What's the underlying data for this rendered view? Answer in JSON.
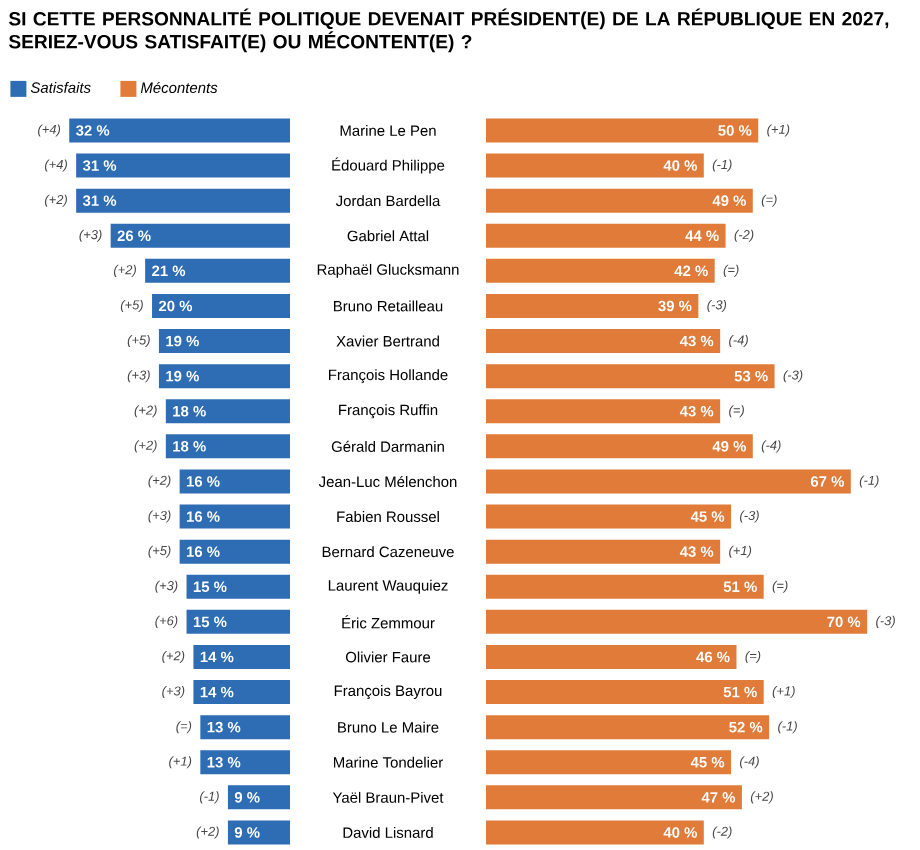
{
  "chart_data": [
    {
      "type": "bar",
      "orientation": "horizontal",
      "title": "SI CETTE PERSONNALITÉ POLITIQUE DEVENAIT PRÉSIDENT(E) DE LA RÉPUBLIQUE EN 2027, SERIEZ-VOUS SATISFAIT(E) OU MÉCONTENT(E) ?",
      "categories": [
        "Marine Le Pen",
        "Édouard Philippe",
        "Jordan Bardella",
        "Gabriel Attal",
        "Raphaël Glucksmann",
        "Bruno Retailleau",
        "Xavier Bertrand",
        "François Hollande",
        "François Ruffin",
        "Gérald Darmanin",
        "Jean-Luc Mélenchon",
        "Fabien Roussel",
        "Bernard Cazeneuve",
        "Laurent Wauquiez",
        "Éric Zemmour",
        "Olivier Faure",
        "François Bayrou",
        "Bruno Le Maire",
        "Marine Tondelier",
        "Yaël Braun-Pivet",
        "David Lisnard"
      ],
      "series": [
        {
          "name": "Satisfaits",
          "color": "#2e6db4",
          "values": [
            32,
            31,
            31,
            26,
            21,
            20,
            19,
            19,
            18,
            18,
            16,
            16,
            16,
            15,
            15,
            14,
            14,
            13,
            13,
            9,
            9
          ],
          "value_labels": [
            "32 %",
            "31 %",
            "31 %",
            "26 %",
            "21 %",
            "20 %",
            "19 %",
            "19 %",
            "18 %",
            "18 %",
            "16 %",
            "16 %",
            "16 %",
            "15 %",
            "15 %",
            "14 %",
            "14 %",
            "13 %",
            "13 %",
            "9 %",
            "9 %"
          ]
        }
      ],
      "tick_labels": "y",
      "legend": "top left",
      "annotations": [
        {
          "text": "(+4)",
          "x": 32,
          "y": "Marine Le Pen"
        },
        {
          "text": "(+4)",
          "x": 31,
          "y": "Édouard Philippe"
        },
        {
          "text": "(+2)",
          "x": 31,
          "y": "Jordan Bardella"
        },
        {
          "text": "(+3)",
          "x": 26,
          "y": "Gabriel Attal"
        },
        {
          "text": "(+2)",
          "x": 21,
          "y": "Raphaël Glucksmann"
        },
        {
          "text": "(+5)",
          "x": 20,
          "y": "Bruno Retailleau"
        },
        {
          "text": "(+5)",
          "x": 19,
          "y": "Xavier Bertrand"
        },
        {
          "text": "(+3)",
          "x": 19,
          "y": "François Hollande"
        },
        {
          "text": "(+2)",
          "x": 18,
          "y": "François Ruffin"
        },
        {
          "text": "(+2)",
          "x": 18,
          "y": "Gérald Darmanin"
        },
        {
          "text": "(+2)",
          "x": 16,
          "y": "Jean-Luc Mélenchon"
        },
        {
          "text": "(+3)",
          "x": 16,
          "y": "Fabien Roussel"
        },
        {
          "text": "(+5)",
          "x": 16,
          "y": "Bernard Cazeneuve"
        },
        {
          "text": "(+3)",
          "x": 15,
          "y": "Laurent Wauquiez"
        },
        {
          "text": "(+6)",
          "x": 15,
          "y": "Éric Zemmour"
        },
        {
          "text": "(+2)",
          "x": 14,
          "y": "Olivier Faure"
        },
        {
          "text": "(+3)",
          "x": 14,
          "y": "François Bayrou"
        },
        {
          "text": "(=)",
          "x": 13,
          "y": "Bruno Le Maire"
        },
        {
          "text": "(+1)",
          "x": 13,
          "y": "Marine Tondelier"
        },
        {
          "text": "(-1)",
          "x": 9,
          "y": "Yaël Braun-Pivet"
        },
        {
          "text": "(+2)",
          "x": 9,
          "y": "David Lisnard"
        }
      ]
    },
    {
      "type": "bar",
      "orientation": "horizontal",
      "categories": [
        "Marine Le Pen",
        "Édouard Philippe",
        "Jordan Bardella",
        "Gabriel Attal",
        "Raphaël Glucksmann",
        "Bruno Retailleau",
        "Xavier Bertrand",
        "François Hollande",
        "François Ruffin",
        "Gérald Darmanin",
        "Jean-Luc Mélenchon",
        "Fabien Roussel",
        "Bernard Cazeneuve",
        "Laurent Wauquiez",
        "Éric Zemmour",
        "Olivier Faure",
        "François Bayrou",
        "Bruno Le Maire",
        "Marine Tondelier",
        "Yaël Braun-Pivet",
        "David Lisnard"
      ],
      "series": [
        {
          "name": "Mécontents",
          "color": "#e07b39",
          "values": [
            50,
            40,
            49,
            44,
            42,
            39,
            43,
            53,
            43,
            49,
            67,
            45,
            43,
            51,
            70,
            46,
            51,
            52,
            45,
            47,
            40
          ],
          "value_labels": [
            "50 %",
            "40 %",
            "49 %",
            "44 %",
            "42 %",
            "39 %",
            "43 %",
            "53 %",
            "43 %",
            "49 %",
            "67 %",
            "45 %",
            "43 %",
            "51 %",
            "70 %",
            "46 %",
            "51 %",
            "52 %",
            "45 %",
            "47 %",
            "40 %"
          ]
        }
      ],
      "tick_labels": false,
      "legend": "top left",
      "annotations": [
        {
          "text": "(+1)",
          "x": 50,
          "y": "Marine Le Pen"
        },
        {
          "text": "(-1)",
          "x": 40,
          "y": "Édouard Philippe"
        },
        {
          "text": "(=)",
          "x": 49,
          "y": "Jordan Bardella"
        },
        {
          "text": "(-2)",
          "x": 44,
          "y": "Gabriel Attal"
        },
        {
          "text": "(=)",
          "x": 42,
          "y": "Raphaël Glucksmann"
        },
        {
          "text": "(-3)",
          "x": 39,
          "y": "Bruno Retailleau"
        },
        {
          "text": "(-4)",
          "x": 43,
          "y": "Xavier Bertrand"
        },
        {
          "text": "(-3)",
          "x": 53,
          "y": "François Hollande"
        },
        {
          "text": "(=)",
          "x": 43,
          "y": "François Ruffin"
        },
        {
          "text": "(-4)",
          "x": 49,
          "y": "Gérald Darmanin"
        },
        {
          "text": "(-1)",
          "x": 67,
          "y": "Jean-Luc Mélenchon"
        },
        {
          "text": "(-3)",
          "x": 45,
          "y": "Fabien Roussel"
        },
        {
          "text": "(+1)",
          "x": 43,
          "y": "Bernard Cazeneuve"
        },
        {
          "text": "(=)",
          "x": 51,
          "y": "Laurent Wauquiez"
        },
        {
          "text": "(-3)",
          "x": 70,
          "y": "Éric Zemmour"
        },
        {
          "text": "(=)",
          "x": 46,
          "y": "Olivier Faure"
        },
        {
          "text": "(+1)",
          "x": 51,
          "y": "François Bayrou"
        },
        {
          "text": "(-1)",
          "x": 52,
          "y": "Bruno Le Maire"
        },
        {
          "text": "(-4)",
          "x": 45,
          "y": "Marine Tondelier"
        },
        {
          "text": "(+2)",
          "x": 47,
          "y": "Yaël Braun-Pivet"
        },
        {
          "text": "(-2)",
          "x": 40,
          "y": "David Lisnard"
        }
      ]
    }
  ]
}
